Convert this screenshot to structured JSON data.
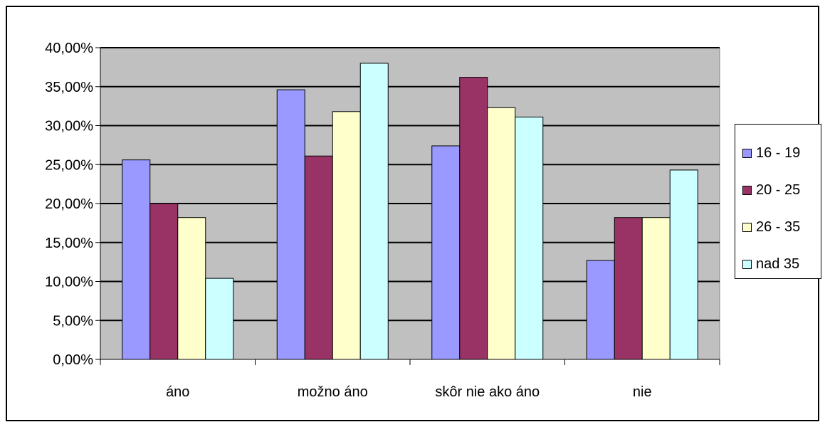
{
  "chart_data": {
    "type": "bar",
    "title": "",
    "xlabel": "",
    "ylabel": "",
    "categories": [
      "áno",
      "možno áno",
      "skôr nie ako áno",
      "nie"
    ],
    "series": [
      {
        "name": "16 - 19",
        "color": "#9999ff",
        "values": [
          25.6,
          34.6,
          27.4,
          12.7
        ]
      },
      {
        "name": "20 - 25",
        "color": "#993366",
        "values": [
          20.0,
          26.1,
          36.2,
          18.2
        ]
      },
      {
        "name": "26 - 35",
        "color": "#ffffcc",
        "values": [
          18.2,
          31.8,
          32.3,
          18.2
        ]
      },
      {
        "name": "nad 35",
        "color": "#ccffff",
        "values": [
          10.4,
          38.0,
          31.1,
          24.3
        ]
      }
    ],
    "ylim": [
      0,
      40
    ],
    "yticks": [
      "0,00%",
      "5,00%",
      "10,00%",
      "15,00%",
      "20,00%",
      "25,00%",
      "30,00%",
      "35,00%",
      "40,00%"
    ],
    "grid": true,
    "plot_background": "#c0c0c0",
    "legend_position": "right"
  }
}
